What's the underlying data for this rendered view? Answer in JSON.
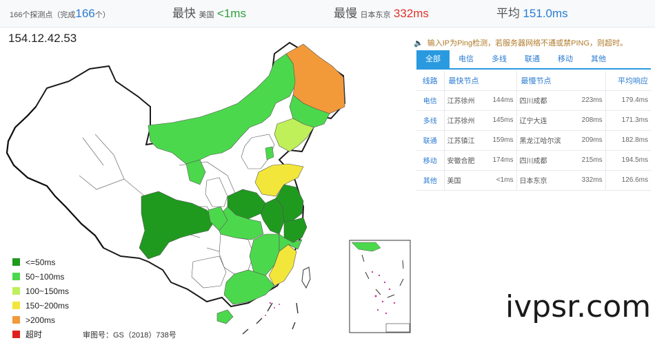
{
  "stats": {
    "count_prefix": "166个探测点（完成",
    "count_value": "166",
    "count_suffix": "个）",
    "fastest_label": "最快",
    "fastest_loc": "美国",
    "fastest_value": "<1ms",
    "slowest_label": "最慢",
    "slowest_loc": "日本东京",
    "slowest_value": "332ms",
    "avg_label": "平均",
    "avg_value": "151.0ms"
  },
  "ip": "154.12.42.53",
  "notice": "输入IP为Ping检测，若服务器网络不通或禁PING，则超时。",
  "tabs": [
    {
      "label": "全部",
      "active": true
    },
    {
      "label": "电信",
      "active": false
    },
    {
      "label": "多线",
      "active": false
    },
    {
      "label": "联通",
      "active": false
    },
    {
      "label": "移动",
      "active": false
    },
    {
      "label": "其他",
      "active": false
    }
  ],
  "table": {
    "headers": [
      "线路",
      "最快节点",
      "最慢节点",
      "平均响应"
    ],
    "rows": [
      {
        "line": "电信",
        "fast_node": "江苏徐州",
        "fast_ms": "144ms",
        "slow_node": "四川成都",
        "slow_ms": "223ms",
        "avg": "179.4ms"
      },
      {
        "line": "多线",
        "fast_node": "江苏徐州",
        "fast_ms": "145ms",
        "slow_node": "辽宁大连",
        "slow_ms": "208ms",
        "avg": "171.3ms"
      },
      {
        "line": "联通",
        "fast_node": "江苏镇江",
        "fast_ms": "159ms",
        "slow_node": "黑龙江哈尔滨",
        "slow_ms": "209ms",
        "avg": "182.8ms"
      },
      {
        "line": "移动",
        "fast_node": "安徽合肥",
        "fast_ms": "174ms",
        "slow_node": "四川成都",
        "slow_ms": "215ms",
        "avg": "194.5ms"
      },
      {
        "line": "其他",
        "fast_node": "美国",
        "fast_ms": "<1ms",
        "slow_node": "日本东京",
        "slow_ms": "332ms",
        "avg": "126.6ms"
      }
    ]
  },
  "legend": [
    {
      "label": "<=50ms",
      "color": "#1f9a1f"
    },
    {
      "label": "50~100ms",
      "color": "#4cd84c"
    },
    {
      "label": "100~150ms",
      "color": "#bff05a"
    },
    {
      "label": "150~200ms",
      "color": "#f2e63a"
    },
    {
      "label": ">200ms",
      "color": "#f29a3a"
    },
    {
      "label": "超时",
      "color": "#e0201e"
    }
  ],
  "approval": "审图号：GS（2018）738号",
  "watermark": "ivpsr.com",
  "colors": {
    "tab_active": "#2a9ae0",
    "link_blue": "#2a7bd2",
    "fast_green": "#2ea03a",
    "slow_red": "#e0332b"
  }
}
